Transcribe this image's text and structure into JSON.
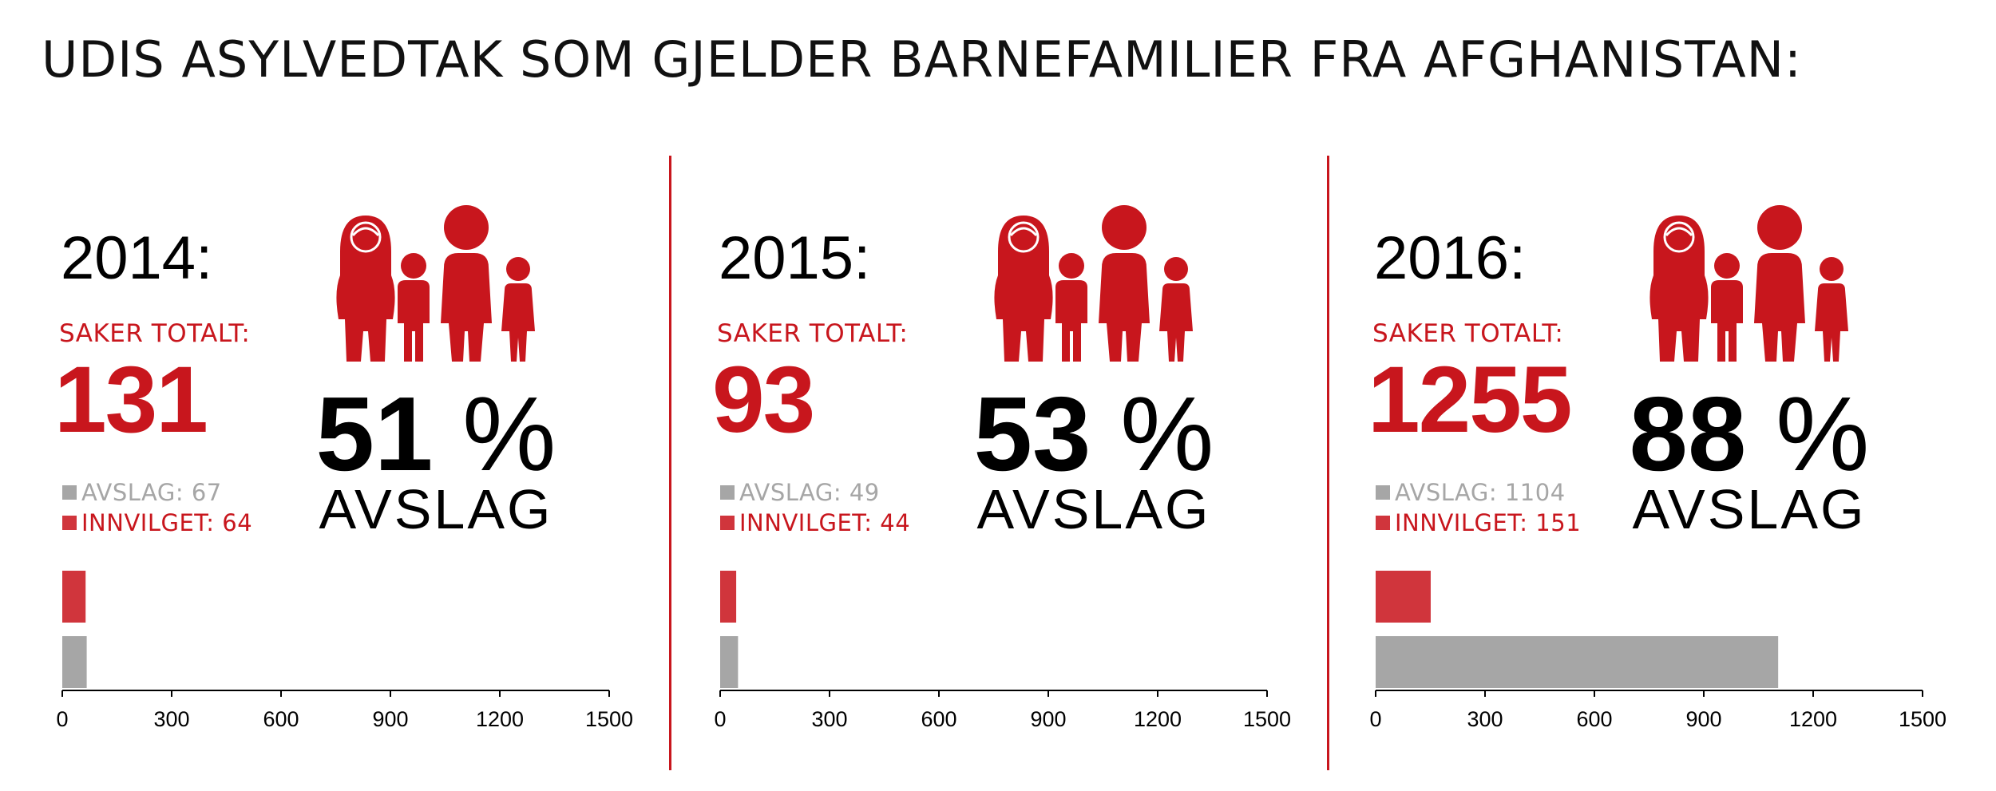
{
  "title": "UDIS ASYLVEDTAK SOM GJELDER BARNEFAMILIER FRA AFGHANISTAN:",
  "colors": {
    "accent": "#c8161d",
    "bar_innvilget": "#d0353c",
    "bar_avslag": "#a6a6a6",
    "text": "#000000"
  },
  "icon": "family-icon",
  "panels": [
    {
      "year": "2014:",
      "saker_label": "SAKER TOTALT:",
      "total": "131",
      "avslag_legend": "AVSLAG: 67",
      "innvilget_legend": "INNVILGET: 64",
      "pct_value": "51",
      "pct_sign": "%",
      "avslag_word": "AVSLAG"
    },
    {
      "year": "2015:",
      "saker_label": "SAKER TOTALT:",
      "total": "93",
      "avslag_legend": "AVSLAG: 49",
      "innvilget_legend": "INNVILGET: 44",
      "pct_value": "53",
      "pct_sign": "%",
      "avslag_word": "AVSLAG"
    },
    {
      "year": "2016:",
      "saker_label": "SAKER TOTALT:",
      "total": "1255",
      "avslag_legend": "AVSLAG: 1104",
      "innvilget_legend": "INNVILGET: 151",
      "pct_value": "88",
      "pct_sign": "%",
      "avslag_word": "AVSLAG"
    }
  ],
  "chart_data": [
    {
      "type": "bar",
      "orientation": "horizontal",
      "title": "2014",
      "categories": [
        "INNVILGET",
        "AVSLAG"
      ],
      "values": [
        64,
        67
      ],
      "xlim": [
        0,
        1500
      ],
      "ticks": [
        "0",
        "300",
        "600",
        "900",
        "1200",
        "1500"
      ]
    },
    {
      "type": "bar",
      "orientation": "horizontal",
      "title": "2015",
      "categories": [
        "INNVILGET",
        "AVSLAG"
      ],
      "values": [
        44,
        49
      ],
      "xlim": [
        0,
        1500
      ],
      "ticks": [
        "0",
        "300",
        "600",
        "900",
        "1200",
        "1500"
      ]
    },
    {
      "type": "bar",
      "orientation": "horizontal",
      "title": "2016",
      "categories": [
        "INNVILGET",
        "AVSLAG"
      ],
      "values": [
        151,
        1104
      ],
      "xlim": [
        0,
        1500
      ],
      "ticks": [
        "0",
        "300",
        "600",
        "900",
        "1200",
        "1500"
      ]
    }
  ]
}
